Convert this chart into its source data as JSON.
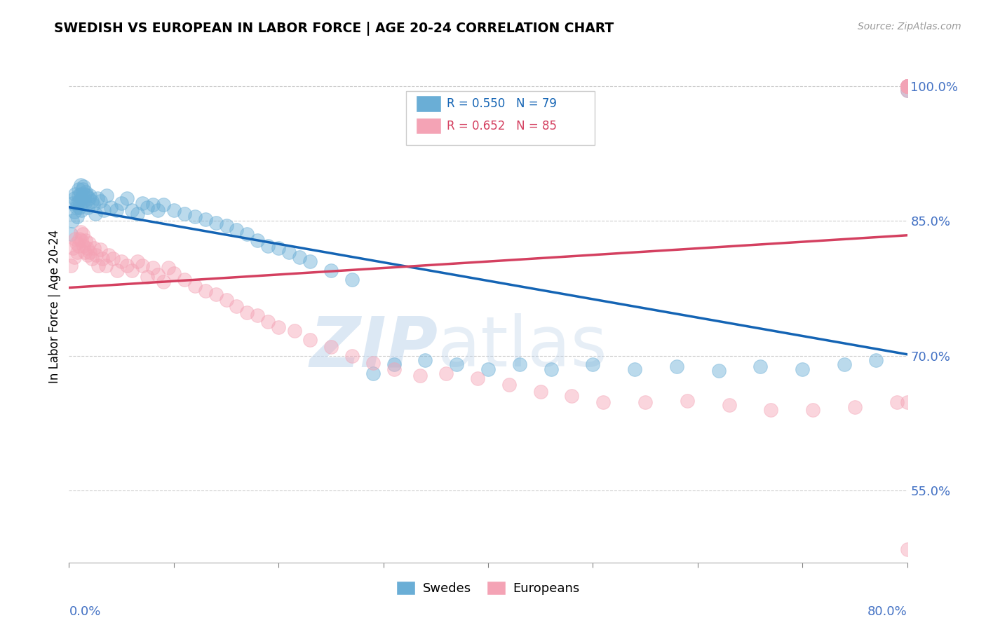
{
  "title": "SWEDISH VS EUROPEAN IN LABOR FORCE | AGE 20-24 CORRELATION CHART",
  "source": "Source: ZipAtlas.com",
  "ylabel": "In Labor Force | Age 20-24",
  "yticks": [
    0.55,
    0.7,
    0.85,
    1.0
  ],
  "ytick_labels": [
    "55.0%",
    "70.0%",
    "85.0%",
    "100.0%"
  ],
  "xlim": [
    0.0,
    0.8
  ],
  "ylim": [
    0.47,
    1.04
  ],
  "blue_R": 0.55,
  "blue_N": 79,
  "pink_R": 0.652,
  "pink_N": 85,
  "blue_color": "#6aaed6",
  "pink_color": "#f4a3b5",
  "blue_line_color": "#1464b4",
  "pink_line_color": "#d44060",
  "axis_color": "#4472c4",
  "grid_color": "#cccccc",
  "blue_x": [
    0.002,
    0.003,
    0.004,
    0.005,
    0.005,
    0.006,
    0.007,
    0.008,
    0.008,
    0.009,
    0.009,
    0.01,
    0.01,
    0.011,
    0.011,
    0.012,
    0.012,
    0.013,
    0.013,
    0.014,
    0.014,
    0.015,
    0.015,
    0.016,
    0.017,
    0.018,
    0.019,
    0.02,
    0.022,
    0.023,
    0.025,
    0.027,
    0.03,
    0.033,
    0.036,
    0.04,
    0.045,
    0.05,
    0.055,
    0.06,
    0.065,
    0.07,
    0.075,
    0.08,
    0.085,
    0.09,
    0.1,
    0.11,
    0.12,
    0.13,
    0.14,
    0.15,
    0.16,
    0.17,
    0.18,
    0.19,
    0.2,
    0.21,
    0.22,
    0.23,
    0.25,
    0.27,
    0.29,
    0.31,
    0.34,
    0.37,
    0.4,
    0.43,
    0.46,
    0.5,
    0.54,
    0.58,
    0.62,
    0.66,
    0.7,
    0.74,
    0.77,
    0.8,
    0.8
  ],
  "blue_y": [
    0.835,
    0.85,
    0.87,
    0.875,
    0.86,
    0.88,
    0.865,
    0.87,
    0.855,
    0.885,
    0.878,
    0.865,
    0.872,
    0.88,
    0.89,
    0.875,
    0.862,
    0.878,
    0.885,
    0.872,
    0.888,
    0.88,
    0.87,
    0.882,
    0.878,
    0.865,
    0.875,
    0.878,
    0.872,
    0.868,
    0.858,
    0.875,
    0.872,
    0.862,
    0.878,
    0.865,
    0.862,
    0.87,
    0.875,
    0.862,
    0.858,
    0.87,
    0.865,
    0.868,
    0.862,
    0.868,
    0.862,
    0.858,
    0.855,
    0.852,
    0.848,
    0.845,
    0.84,
    0.835,
    0.828,
    0.822,
    0.82,
    0.815,
    0.81,
    0.805,
    0.795,
    0.785,
    0.68,
    0.69,
    0.695,
    0.69,
    0.685,
    0.69,
    0.685,
    0.69,
    0.685,
    0.688,
    0.683,
    0.688,
    0.685,
    0.69,
    0.695,
    0.995,
    1.0
  ],
  "pink_x": [
    0.002,
    0.004,
    0.005,
    0.006,
    0.007,
    0.008,
    0.009,
    0.01,
    0.011,
    0.012,
    0.013,
    0.014,
    0.015,
    0.016,
    0.017,
    0.018,
    0.019,
    0.02,
    0.022,
    0.024,
    0.026,
    0.028,
    0.03,
    0.032,
    0.035,
    0.038,
    0.042,
    0.046,
    0.05,
    0.055,
    0.06,
    0.065,
    0.07,
    0.075,
    0.08,
    0.085,
    0.09,
    0.095,
    0.1,
    0.11,
    0.12,
    0.13,
    0.14,
    0.15,
    0.16,
    0.17,
    0.18,
    0.19,
    0.2,
    0.215,
    0.23,
    0.25,
    0.27,
    0.29,
    0.31,
    0.335,
    0.36,
    0.39,
    0.42,
    0.45,
    0.48,
    0.51,
    0.55,
    0.59,
    0.63,
    0.67,
    0.71,
    0.75,
    0.79,
    0.8,
    0.8,
    0.8,
    0.8,
    0.8,
    0.8,
    0.8,
    0.8,
    0.8,
    0.8,
    0.8,
    0.8,
    0.8,
    0.8,
    0.8,
    0.8
  ],
  "pink_y": [
    0.8,
    0.82,
    0.81,
    0.83,
    0.825,
    0.815,
    0.822,
    0.83,
    0.838,
    0.828,
    0.835,
    0.822,
    0.815,
    0.828,
    0.82,
    0.812,
    0.825,
    0.815,
    0.808,
    0.82,
    0.812,
    0.8,
    0.818,
    0.808,
    0.8,
    0.812,
    0.808,
    0.795,
    0.805,
    0.8,
    0.795,
    0.805,
    0.8,
    0.788,
    0.798,
    0.79,
    0.782,
    0.798,
    0.792,
    0.785,
    0.778,
    0.772,
    0.768,
    0.762,
    0.755,
    0.748,
    0.745,
    0.738,
    0.732,
    0.728,
    0.718,
    0.71,
    0.7,
    0.692,
    0.685,
    0.678,
    0.68,
    0.675,
    0.668,
    0.66,
    0.655,
    0.648,
    0.648,
    0.65,
    0.645,
    0.64,
    0.64,
    0.643,
    0.648,
    0.648,
    0.485,
    0.995,
    1.0,
    1.0,
    1.0,
    1.0,
    1.0,
    1.0,
    1.0,
    1.0,
    1.0,
    1.0,
    1.0,
    1.0,
    1.0
  ]
}
